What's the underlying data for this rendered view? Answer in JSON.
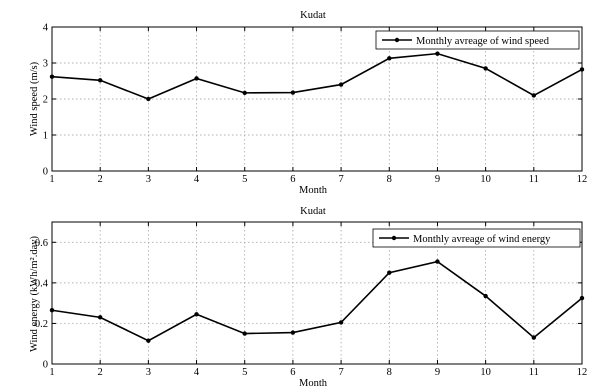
{
  "chart_data": [
    {
      "type": "line",
      "title": "Kudat",
      "xlabel": "Month",
      "ylabel": "Wind speed (m/s)",
      "x": [
        1,
        2,
        3,
        4,
        5,
        6,
        7,
        8,
        9,
        10,
        11,
        12
      ],
      "xlim": [
        1,
        12
      ],
      "ylim": [
        0,
        4
      ],
      "yticks": [
        0,
        1,
        2,
        3,
        4
      ],
      "yticklabels": [
        "0",
        "1",
        "2",
        "3",
        "4"
      ],
      "grid": true,
      "legend_position": "top-right",
      "series": [
        {
          "name": "Monthly avreage of wind speed",
          "values": [
            2.62,
            2.52,
            2.0,
            2.57,
            2.17,
            2.18,
            2.4,
            3.13,
            3.26,
            2.85,
            2.1,
            2.82
          ]
        }
      ]
    },
    {
      "type": "line",
      "title": "Kudat",
      "xlabel": "Month",
      "ylabel": "Wind energy  (kWh/m².day)",
      "x": [
        1,
        2,
        3,
        4,
        5,
        6,
        7,
        8,
        9,
        10,
        11,
        12
      ],
      "xlim": [
        1,
        12
      ],
      "ylim": [
        0,
        0.7
      ],
      "yticks": [
        0,
        0.2,
        0.4,
        0.6
      ],
      "yticklabels": [
        "0",
        "0.2",
        "0.4",
        "0.6"
      ],
      "grid": true,
      "legend_position": "top-right",
      "series": [
        {
          "name": "Monthly avreage of wind energy",
          "values": [
            0.265,
            0.23,
            0.115,
            0.245,
            0.15,
            0.155,
            0.205,
            0.45,
            0.505,
            0.335,
            0.13,
            0.325
          ]
        }
      ]
    }
  ]
}
